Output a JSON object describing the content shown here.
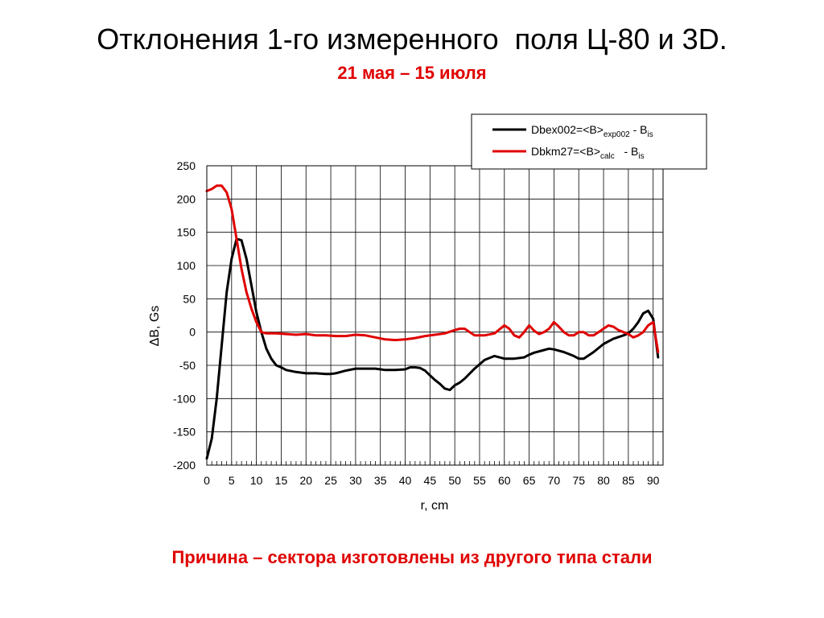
{
  "slide": {
    "title": "Отклонения 1-го измеренного  поля Ц-80 и 3D.",
    "subtitle": "21 мая – 15 июля",
    "footnote": "Причина – сектора изготовлены из другого типа стали"
  },
  "chart_data": {
    "type": "line",
    "xlabel": "r, cm",
    "ylabel": "ΔB, Gs",
    "xlim": [
      0,
      92
    ],
    "ylim": [
      -200,
      250
    ],
    "x_ticks": [
      0,
      5,
      10,
      15,
      20,
      25,
      30,
      35,
      40,
      45,
      50,
      55,
      60,
      65,
      70,
      75,
      80,
      85,
      90
    ],
    "y_ticks": [
      250,
      200,
      150,
      100,
      50,
      0,
      -50,
      -100,
      -150,
      -200
    ],
    "x_minor_step": 1,
    "grid": true,
    "legend_position": "top-right",
    "series": [
      {
        "name_main": "Dbex002=<B>",
        "name_sub": "exp002",
        "name_tail": " - B",
        "name_tail_sub": "is",
        "color": "#000000",
        "x": [
          0,
          1,
          2,
          3,
          4,
          5,
          6,
          7,
          8,
          9,
          10,
          11,
          12,
          13,
          14,
          15,
          16,
          18,
          20,
          22,
          24,
          25,
          26,
          28,
          30,
          32,
          34,
          36,
          38,
          40,
          41,
          42,
          43,
          44,
          45,
          46,
          47,
          48,
          49,
          50,
          51,
          52,
          54,
          56,
          58,
          59,
          60,
          62,
          64,
          65,
          66,
          68,
          69,
          70,
          72,
          74,
          75,
          76,
          78,
          80,
          82,
          84,
          85,
          86,
          87,
          88,
          89,
          90,
          91
        ],
        "y": [
          -190,
          -160,
          -100,
          -20,
          60,
          110,
          140,
          138,
          110,
          70,
          30,
          0,
          -25,
          -40,
          -50,
          -53,
          -57,
          -60,
          -62,
          -62,
          -63,
          -63,
          -62,
          -58,
          -55,
          -55,
          -55,
          -57,
          -57,
          -56,
          -53,
          -53,
          -54,
          -58,
          -65,
          -72,
          -78,
          -85,
          -87,
          -80,
          -76,
          -70,
          -55,
          -42,
          -36,
          -38,
          -40,
          -40,
          -38,
          -34,
          -31,
          -27,
          -25,
          -26,
          -30,
          -36,
          -40,
          -40,
          -30,
          -18,
          -10,
          -5,
          -2,
          5,
          15,
          28,
          32,
          20,
          -38
        ]
      },
      {
        "name_main": "Dbkm27=<B>",
        "name_sub": "calc",
        "name_tail": "   - B",
        "name_tail_sub": "is",
        "color": "#e00000",
        "x": [
          0,
          1,
          2,
          3,
          4,
          5,
          6,
          7,
          8,
          9,
          10,
          11,
          12,
          14,
          16,
          18,
          20,
          22,
          24,
          26,
          28,
          30,
          32,
          34,
          36,
          38,
          40,
          42,
          44,
          46,
          48,
          50,
          51,
          52,
          53,
          54,
          56,
          58,
          60,
          61,
          62,
          63,
          64,
          65,
          66,
          67,
          68,
          69,
          70,
          71,
          72,
          73,
          74,
          75,
          76,
          77,
          78,
          79,
          80,
          81,
          82,
          83,
          84,
          85,
          86,
          87,
          88,
          89,
          90,
          91
        ],
        "y": [
          212,
          215,
          220,
          220,
          210,
          185,
          140,
          95,
          60,
          35,
          15,
          0,
          -2,
          -2,
          -3,
          -4,
          -3,
          -5,
          -5,
          -6,
          -6,
          -4,
          -5,
          -8,
          -11,
          -12,
          -11,
          -9,
          -6,
          -4,
          -2,
          3,
          5,
          5,
          0,
          -5,
          -5,
          -2,
          10,
          5,
          -5,
          -8,
          0,
          10,
          2,
          -3,
          0,
          5,
          15,
          8,
          0,
          -5,
          -5,
          0,
          0,
          -5,
          -5,
          0,
          5,
          10,
          8,
          3,
          0,
          -3,
          -8,
          -5,
          0,
          10,
          15,
          -30
        ]
      }
    ]
  }
}
